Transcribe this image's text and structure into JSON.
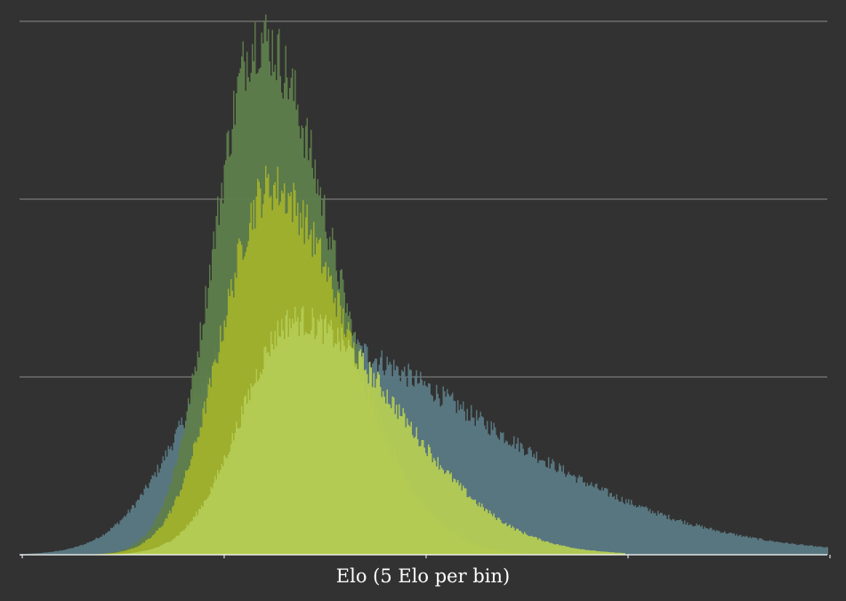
{
  "chart_data": {
    "type": "bar",
    "title": "",
    "xlabel": "Elo (5 Elo per bin)",
    "ylabel": "",
    "grid": true,
    "legend": "none",
    "y_gridline_count": 3,
    "x_tick_count": 4,
    "series": [
      {
        "color": "#5b7a84",
        "opacity": 0.95,
        "x_range_fraction": [
          0.0,
          1.0
        ],
        "center_fraction": 0.29,
        "sigma_left": 0.085,
        "sigma_right": 0.27,
        "peak_fraction": 0.43
      },
      {
        "color": "#5f7f4c",
        "opacity": 0.95,
        "x_range_fraction": [
          0.0,
          0.62
        ],
        "center_fraction": 0.295,
        "sigma_left": 0.055,
        "sigma_right": 0.09,
        "peak_fraction": 0.97
      },
      {
        "color": "#a2b12c",
        "opacity": 0.95,
        "x_range_fraction": [
          0.0,
          0.62
        ],
        "center_fraction": 0.31,
        "sigma_left": 0.06,
        "sigma_right": 0.095,
        "peak_fraction": 0.69
      },
      {
        "color": "#b5cd54",
        "opacity": 0.95,
        "x_range_fraction": [
          0.0,
          0.75
        ],
        "center_fraction": 0.34,
        "sigma_left": 0.065,
        "sigma_right": 0.13,
        "peak_fraction": 0.44
      }
    ]
  }
}
